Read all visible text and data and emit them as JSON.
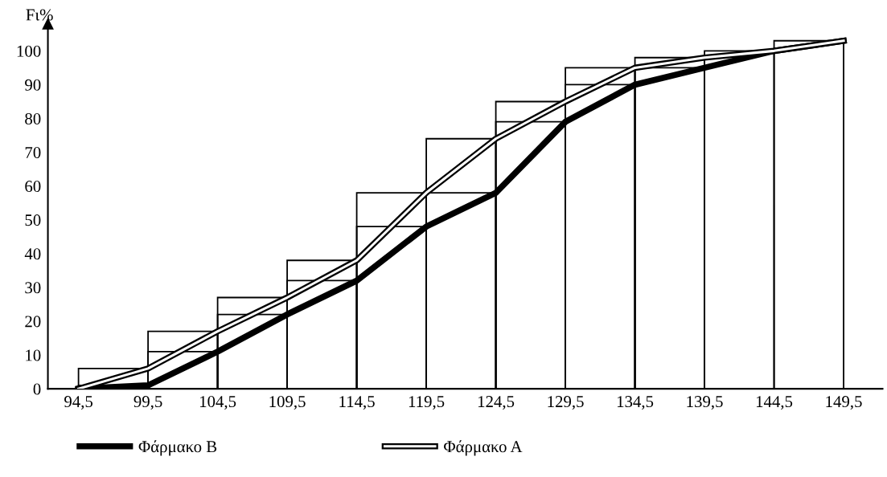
{
  "chart_data": {
    "type": "line",
    "ylabel": "Fι%",
    "xlim": [
      92.3,
      152.3
    ],
    "ylim": [
      0,
      108
    ],
    "xticks": [
      {
        "value": 94.5,
        "label": "94,5"
      },
      {
        "value": 99.5,
        "label": "99,5"
      },
      {
        "value": 104.5,
        "label": "104,5"
      },
      {
        "value": 109.5,
        "label": "109,5"
      },
      {
        "value": 114.5,
        "label": "114,5"
      },
      {
        "value": 119.5,
        "label": "119,5"
      },
      {
        "value": 124.5,
        "label": "124,5"
      },
      {
        "value": 129.5,
        "label": "129,5"
      },
      {
        "value": 134.5,
        "label": "134,5"
      },
      {
        "value": 139.5,
        "label": "139,5"
      },
      {
        "value": 144.5,
        "label": "144,5"
      },
      {
        "value": 149.5,
        "label": "149,5"
      }
    ],
    "yticks": [
      0,
      10,
      20,
      30,
      40,
      50,
      60,
      70,
      80,
      90,
      100
    ],
    "legend": "bottom left",
    "series": [
      {
        "type": "histogram",
        "color": "#000000",
        "bins": [
          94.5,
          99.5,
          104.5,
          109.5,
          114.5,
          119.5,
          124.5,
          129.5,
          134.5,
          139.5,
          144.5,
          149.5
        ],
        "values": [
          6,
          17,
          27,
          38,
          58,
          74,
          85,
          95,
          98,
          100,
          103
        ]
      },
      {
        "type": "histogram",
        "color": "#000000",
        "bins": [
          94.5,
          99.5,
          104.5,
          109.5,
          114.5,
          119.5,
          124.5,
          129.5,
          134.5,
          139.5
        ],
        "values": [
          1,
          11,
          22,
          32,
          48,
          58,
          79,
          90,
          95
        ]
      },
      {
        "name": "Φάρμακο B",
        "color": "#000000",
        "x": [
          94.5,
          99.5,
          104.5,
          109.5,
          114.5,
          119.5,
          124.5,
          129.5,
          134.5,
          139.5,
          144.5,
          149.5
        ],
        "values": [
          0,
          1,
          11,
          22,
          32,
          48,
          58,
          79,
          90,
          95,
          100,
          103
        ]
      },
      {
        "name": "Φάρμακο A",
        "color": "#ffffff",
        "x": [
          94.5,
          99.5,
          104.5,
          109.5,
          114.5,
          119.5,
          124.5,
          129.5,
          134.5,
          139.5,
          144.5,
          149.5
        ],
        "values": [
          0,
          6,
          17,
          27,
          38,
          58,
          74,
          85,
          95,
          98,
          100,
          103
        ]
      }
    ]
  }
}
